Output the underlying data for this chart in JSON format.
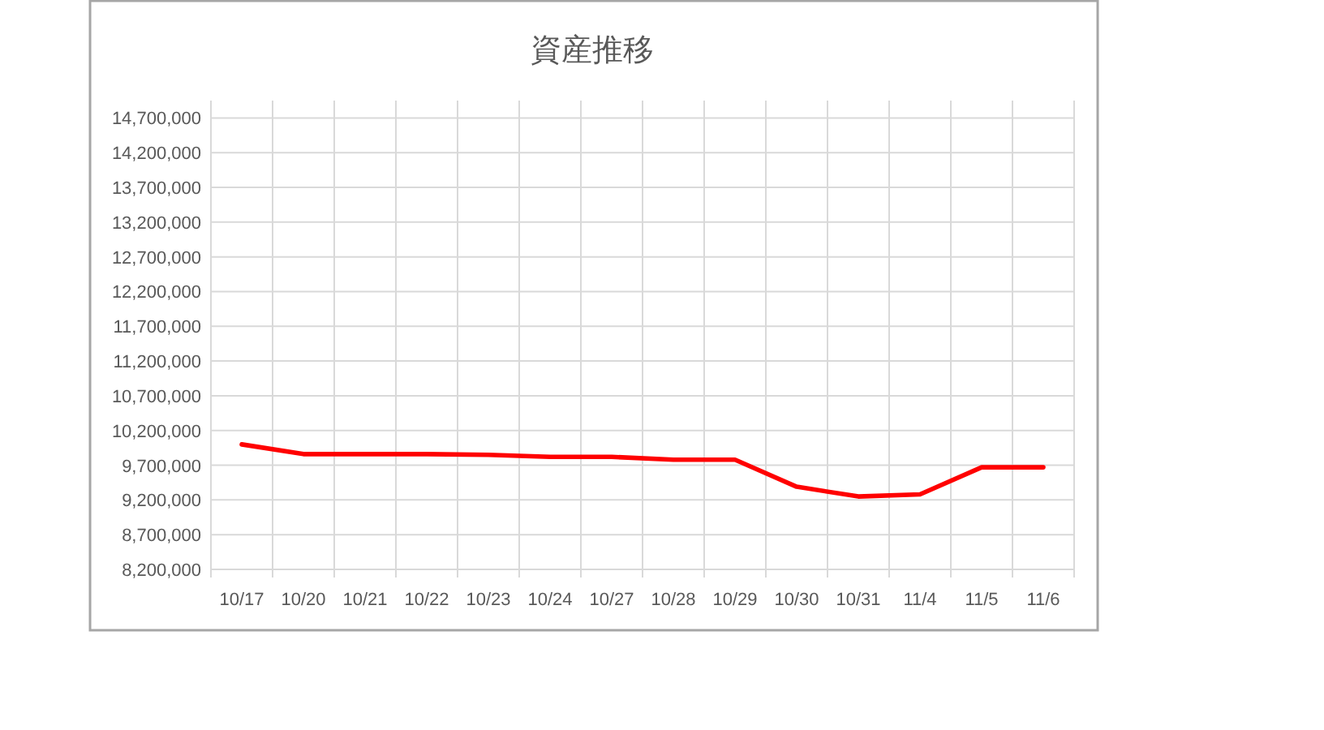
{
  "chart_data": {
    "type": "line",
    "title": "資産推移",
    "categories": [
      "10/17",
      "10/20",
      "10/21",
      "10/22",
      "10/23",
      "10/24",
      "10/27",
      "10/28",
      "10/29",
      "10/30",
      "10/31",
      "11/4",
      "11/5",
      "11/6"
    ],
    "series": [
      {
        "color": "#ff0000",
        "values": [
          10000000,
          9860000,
          9860000,
          9860000,
          9850000,
          9820000,
          9820000,
          9780000,
          9780000,
          9390000,
          9250000,
          9280000,
          9670000,
          9670000
        ]
      }
    ],
    "ylim": [
      8200000,
      14950000
    ],
    "yticks": [
      {
        "value": 8200000,
        "label": "8,200,000"
      },
      {
        "value": 8700000,
        "label": "8,700,000"
      },
      {
        "value": 9200000,
        "label": "9,200,000"
      },
      {
        "value": 9700000,
        "label": "9,700,000"
      },
      {
        "value": 10200000,
        "label": "10,200,000"
      },
      {
        "value": 10700000,
        "label": "10,700,000"
      },
      {
        "value": 11200000,
        "label": "11,200,000"
      },
      {
        "value": 11700000,
        "label": "11,700,000"
      },
      {
        "value": 12200000,
        "label": "12,200,000"
      },
      {
        "value": 12700000,
        "label": "12,700,000"
      },
      {
        "value": 13200000,
        "label": "13,200,000"
      },
      {
        "value": 13700000,
        "label": "13,700,000"
      },
      {
        "value": 14200000,
        "label": "14,200,000"
      },
      {
        "value": 14700000,
        "label": "14,700,000"
      }
    ],
    "grid": true,
    "line_style": "solid"
  }
}
